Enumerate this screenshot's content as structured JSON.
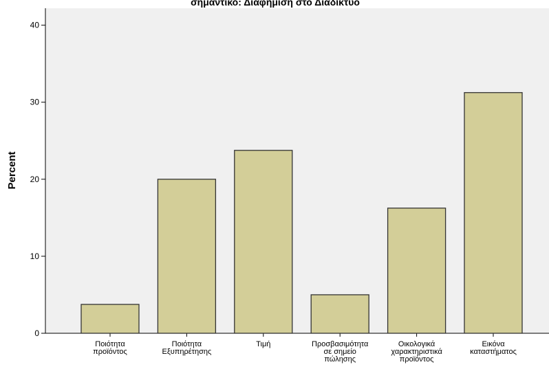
{
  "chart_data": {
    "type": "bar",
    "title": "σημαντικό: Διαφήμιση στο Διαδίκτυο",
    "y_label": "Percent",
    "categories": [
      [
        "Ποιότητα",
        "προϊόντος"
      ],
      [
        "Ποιότητα",
        "Εξυπηρέτησης"
      ],
      [
        "Τιμή"
      ],
      [
        "Προσβασιμότητα",
        "σε σημείο",
        "πώλησης"
      ],
      [
        "Οικολογικά",
        "χαρακτηριστικά",
        "προϊόντος"
      ],
      [
        "Εικόνα",
        "καταστήματος"
      ]
    ],
    "values": [
      3.75,
      20,
      23.75,
      5,
      16.25,
      31.25
    ],
    "color": "#d3ce98",
    "ylim": [
      0,
      42.2
    ],
    "yticks": [
      0,
      10,
      20,
      30,
      40
    ]
  }
}
